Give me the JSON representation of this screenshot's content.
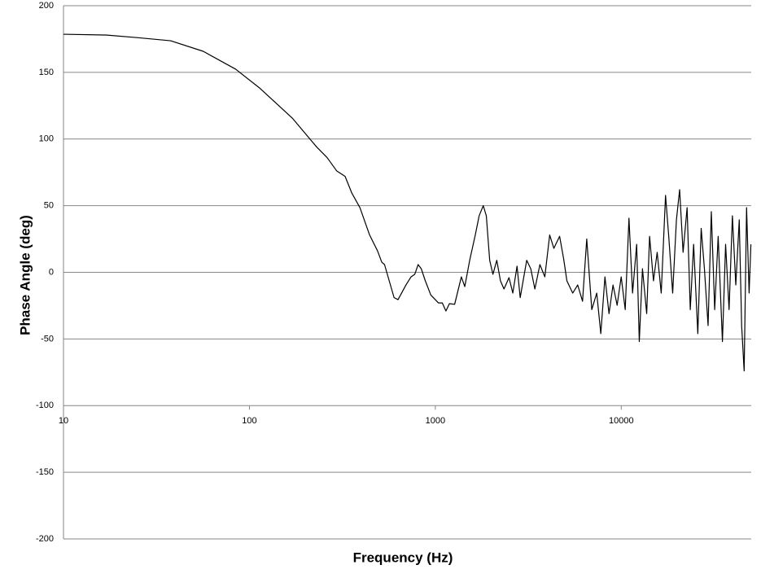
{
  "chart_data": {
    "type": "line",
    "xlabel": "Frequency (Hz)",
    "ylabel": "Phase Angle (deg)",
    "xscale": "log",
    "xlim": [
      10,
      50000
    ],
    "xticks": [
      10,
      100,
      1000,
      10000
    ],
    "ylim": [
      -200,
      200
    ],
    "yticks": [
      -200,
      -150,
      -100,
      -50,
      0,
      50,
      100,
      150,
      200
    ],
    "grid": true,
    "x": [
      10,
      16.9,
      25.2,
      37.7,
      56.4,
      84.3,
      114,
      170,
      230,
      262,
      295,
      327,
      355,
      393,
      443,
      489,
      515,
      533,
      600,
      630,
      695,
      740,
      775,
      808,
      840,
      880,
      945,
      1040,
      1090,
      1140,
      1190,
      1270,
      1380,
      1440,
      1530,
      1640,
      1720,
      1810,
      1880,
      1960,
      2040,
      2140,
      2240,
      2340,
      2490,
      2610,
      2750,
      2860,
      3100,
      3260,
      3430,
      3650,
      3880,
      4120,
      4340,
      4660,
      4900,
      5100,
      5480,
      5830,
      6190,
      6520,
      6940,
      7380,
      7760,
      8170,
      8590,
      9030,
      9500,
      9990,
      10500,
      11000,
      11500,
      12100,
      12500,
      13000,
      13700,
      14200,
      14900,
      15600,
      16400,
      17300,
      18000,
      18900,
      19800,
      20600,
      21500,
      22600,
      23500,
      24500,
      25800,
      26900,
      28000,
      29300,
      30500,
      31800,
      33200,
      35000,
      36400,
      38000,
      39600,
      41300,
      43100,
      44400,
      45800,
      47200,
      48700,
      49800
    ],
    "series": [
      {
        "color": "#000000",
        "values": [
          178.6,
          178,
          176,
          173.7,
          165.8,
          152.4,
          138,
          115.7,
          94,
          86,
          76,
          72,
          59.6,
          48.5,
          28,
          16,
          7.6,
          5.8,
          -19,
          -20.5,
          -9.5,
          -3.4,
          -1.5,
          5.8,
          2.7,
          -5.8,
          -17,
          -23,
          -23,
          -29,
          -23.5,
          -24,
          -3.4,
          -10.7,
          9,
          28,
          42.4,
          50,
          42.4,
          9,
          -1.5,
          9,
          -6.4,
          -12.5,
          -4,
          -15.6,
          4.6,
          -19,
          9,
          2.7,
          -12.5,
          5.8,
          -3.4,
          28,
          18,
          27,
          10,
          -6.4,
          -15.6,
          -9.5,
          -21.7,
          25,
          -28,
          -15.6,
          -46,
          -3.4,
          -31,
          -9.5,
          -24.7,
          -3.4,
          -28,
          40.6,
          -15.6,
          21,
          -52,
          2.7,
          -31,
          27,
          -6.4,
          15,
          -15.6,
          57.7,
          27,
          -15.6,
          39.4,
          62,
          15,
          48.5,
          -28,
          21,
          -46,
          33,
          2.7,
          -40,
          45.5,
          -28,
          27,
          -52,
          21,
          -28,
          42.4,
          -9.5,
          39.4,
          -40,
          -74,
          48.5,
          -15.6,
          21
        ]
      }
    ]
  }
}
